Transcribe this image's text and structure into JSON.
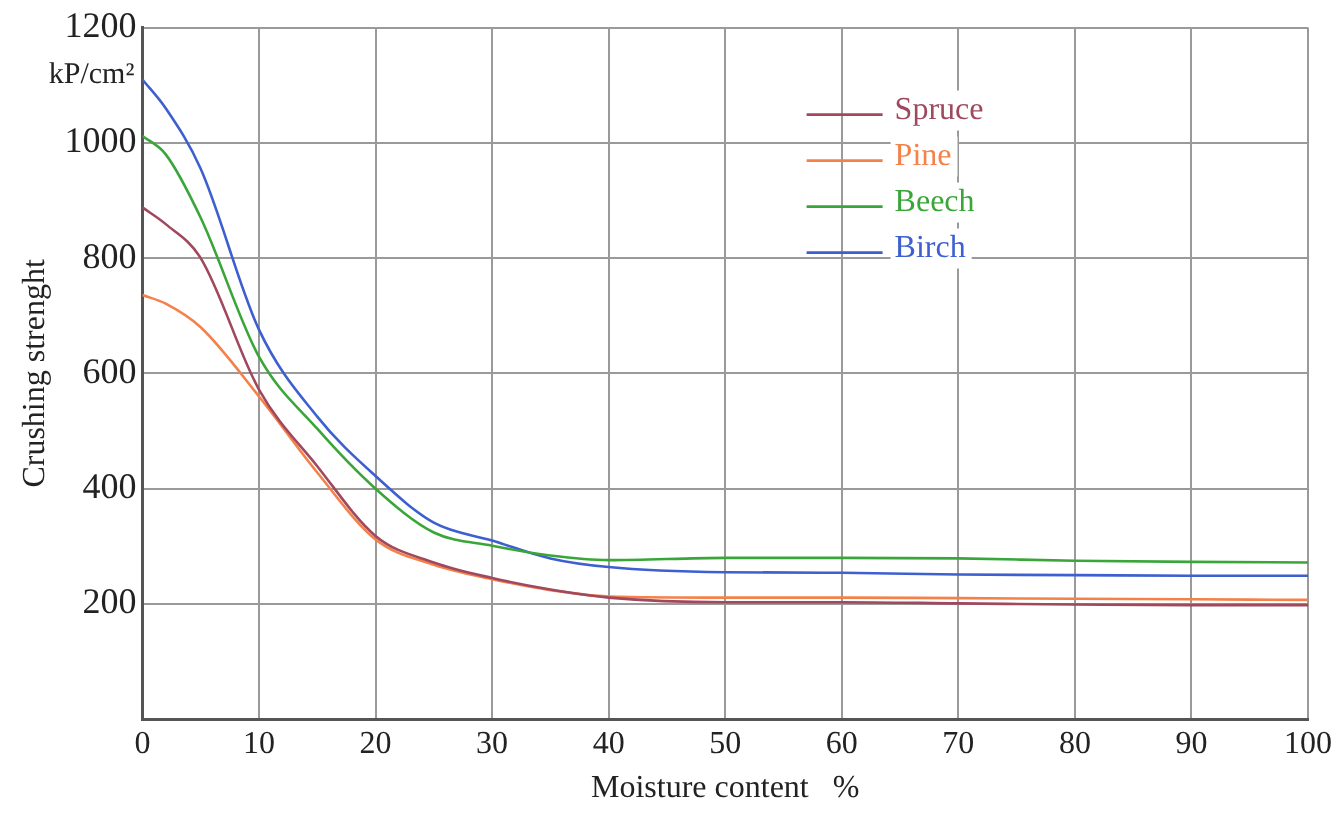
{
  "chart_data": {
    "type": "line",
    "xlabel": "Moisture content   %",
    "ylabel": "Crushing strenght",
    "annotations": [
      "kP/cm²"
    ],
    "x": [
      0,
      2,
      5,
      10,
      15,
      20,
      25,
      30,
      35,
      40,
      50,
      60,
      70,
      80,
      90,
      100
    ],
    "xlim": [
      0,
      100
    ],
    "xticks": [
      0,
      10,
      20,
      30,
      40,
      50,
      60,
      70,
      80,
      90,
      100
    ],
    "ylim": [
      0,
      1200
    ],
    "yticks": [
      200,
      400,
      600,
      800,
      1000,
      1200
    ],
    "grid": true,
    "legend": "top right",
    "marker": "none",
    "line_style": "solid",
    "series": [
      {
        "name": "Spruce",
        "color": "#a0485e",
        "values": [
          888,
          859,
          800,
          572,
          439,
          318,
          272,
          245,
          225,
          211,
          203,
          203,
          201,
          199,
          198,
          198
        ]
      },
      {
        "name": "Pine",
        "color": "#f4814a",
        "values": [
          736,
          721,
          680,
          560,
          428,
          312,
          268,
          243,
          224,
          213,
          211,
          211,
          210,
          209,
          208,
          207
        ]
      },
      {
        "name": "Beech",
        "color": "#3aa63a",
        "values": [
          1012,
          980,
          870,
          629,
          504,
          400,
          324,
          301,
          284,
          276,
          280,
          280,
          279,
          275,
          273,
          272
        ]
      },
      {
        "name": "Birch",
        "color": "#3d5fd0",
        "values": [
          1110,
          1060,
          955,
          676,
          525,
          422,
          341,
          310,
          279,
          264,
          255,
          254,
          251,
          250,
          249,
          249
        ]
      }
    ]
  }
}
